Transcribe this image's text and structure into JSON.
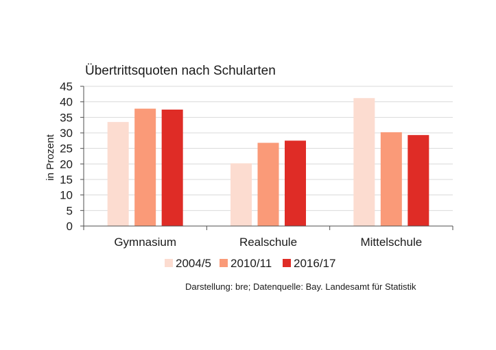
{
  "chart_data": {
    "type": "bar",
    "title": "Übertrittsquoten nach Schularten",
    "ylabel": "in Prozent",
    "xlabel": "",
    "ylim": [
      0,
      45
    ],
    "yticks": [
      0,
      5,
      10,
      15,
      20,
      25,
      30,
      35,
      40,
      45
    ],
    "grid": true,
    "legend_position": "bottom",
    "categories": [
      "Gymnasium",
      "Realschule",
      "Mittelschule"
    ],
    "series": [
      {
        "name": "2004/5",
        "color": "#fcdcd0",
        "values": [
          33.5,
          20.2,
          41.2
        ]
      },
      {
        "name": "2010/11",
        "color": "#fa9a78",
        "values": [
          37.8,
          26.8,
          30.2
        ]
      },
      {
        "name": "2016/17",
        "color": "#df2c26",
        "values": [
          37.5,
          27.5,
          29.3
        ]
      }
    ],
    "source": "Darstellung: bre; Datenquelle: Bay. Landesamt für Statistik"
  }
}
